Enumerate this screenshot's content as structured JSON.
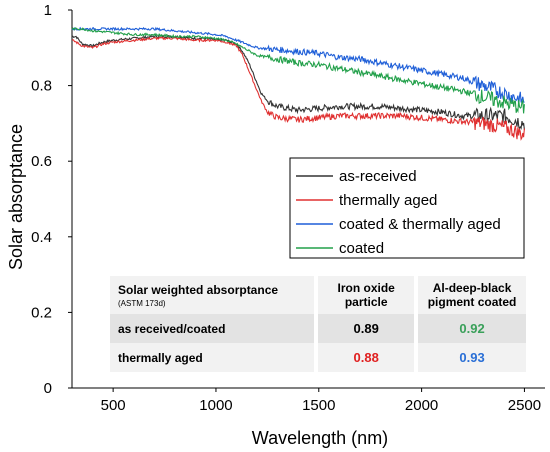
{
  "chart_data": {
    "type": "line",
    "title": "",
    "xlabel": "Wavelength (nm)",
    "ylabel": "Solar absorptance",
    "xlim": [
      300,
      2600
    ],
    "ylim": [
      0,
      1
    ],
    "xticks": [
      "500",
      "1000",
      "1500",
      "2000",
      "2500"
    ],
    "yticks": [
      "0",
      "0.2",
      "0.4",
      "0.6",
      "0.8",
      "1"
    ],
    "grid": false,
    "legend_position": "center-right",
    "series": [
      {
        "name": "as-received",
        "color": "#333333",
        "x": [
          300,
          320,
          350,
          400,
          450,
          500,
          600,
          700,
          800,
          900,
          950,
          1000,
          1050,
          1100,
          1130,
          1160,
          1190,
          1220,
          1250,
          1280,
          1300,
          1400,
          1500,
          1600,
          1700,
          1800,
          1900,
          2000,
          2100,
          2200,
          2300,
          2400,
          2450,
          2500
        ],
        "y": [
          0.93,
          0.93,
          0.91,
          0.905,
          0.915,
          0.92,
          0.925,
          0.93,
          0.93,
          0.925,
          0.925,
          0.92,
          0.92,
          0.91,
          0.89,
          0.86,
          0.82,
          0.78,
          0.76,
          0.75,
          0.745,
          0.735,
          0.74,
          0.745,
          0.745,
          0.745,
          0.74,
          0.735,
          0.73,
          0.72,
          0.72,
          0.72,
          0.71,
          0.7
        ]
      },
      {
        "name": "thermally aged",
        "color": "#e03030",
        "x": [
          300,
          320,
          350,
          400,
          450,
          500,
          600,
          700,
          800,
          900,
          950,
          1000,
          1050,
          1100,
          1130,
          1160,
          1190,
          1220,
          1250,
          1280,
          1300,
          1400,
          1500,
          1600,
          1700,
          1800,
          1900,
          2000,
          2100,
          2200,
          2300,
          2400,
          2450,
          2500
        ],
        "y": [
          0.92,
          0.915,
          0.905,
          0.9,
          0.91,
          0.915,
          0.92,
          0.925,
          0.925,
          0.92,
          0.92,
          0.92,
          0.915,
          0.905,
          0.88,
          0.84,
          0.8,
          0.76,
          0.73,
          0.72,
          0.715,
          0.71,
          0.715,
          0.72,
          0.72,
          0.72,
          0.72,
          0.715,
          0.71,
          0.705,
          0.7,
          0.69,
          0.68,
          0.67
        ]
      },
      {
        "name": "coated & thermally aged",
        "color": "#1f5fd8",
        "x": [
          300,
          350,
          400,
          500,
          600,
          700,
          800,
          900,
          1000,
          1050,
          1100,
          1150,
          1200,
          1300,
          1400,
          1500,
          1600,
          1700,
          1800,
          1900,
          2000,
          2100,
          2200,
          2300,
          2400,
          2500
        ],
        "y": [
          0.95,
          0.95,
          0.95,
          0.95,
          0.95,
          0.95,
          0.945,
          0.94,
          0.935,
          0.93,
          0.92,
          0.91,
          0.9,
          0.895,
          0.89,
          0.885,
          0.875,
          0.87,
          0.86,
          0.85,
          0.84,
          0.83,
          0.82,
          0.8,
          0.78,
          0.76
        ]
      },
      {
        "name": "coated",
        "color": "#22a04a",
        "x": [
          300,
          350,
          400,
          500,
          600,
          700,
          800,
          900,
          1000,
          1050,
          1100,
          1150,
          1200,
          1300,
          1400,
          1500,
          1600,
          1700,
          1800,
          1900,
          2000,
          2100,
          2200,
          2300,
          2400,
          2500
        ],
        "y": [
          0.95,
          0.95,
          0.945,
          0.94,
          0.935,
          0.935,
          0.93,
          0.93,
          0.925,
          0.92,
          0.91,
          0.895,
          0.88,
          0.87,
          0.86,
          0.855,
          0.845,
          0.835,
          0.825,
          0.815,
          0.805,
          0.795,
          0.785,
          0.77,
          0.755,
          0.74
        ]
      }
    ]
  },
  "table": {
    "header": {
      "col1": "Solar weighted absorptance",
      "col1_sub": "(ASTM 173d)",
      "col2_line1": "Iron oxide",
      "col2_line2": "particle",
      "col3_line1": "Al-deep-black",
      "col3_line2": "pigment coated"
    },
    "rows": [
      {
        "label": "as received/coated",
        "v1": "0.89",
        "v1_color": "#000000",
        "v2": "0.92",
        "v2_color": "#3aa05a"
      },
      {
        "label": "thermally aged",
        "v1": "0.88",
        "v1_color": "#e02020",
        "v2": "0.93",
        "v2_color": "#2a6fd6"
      }
    ]
  }
}
